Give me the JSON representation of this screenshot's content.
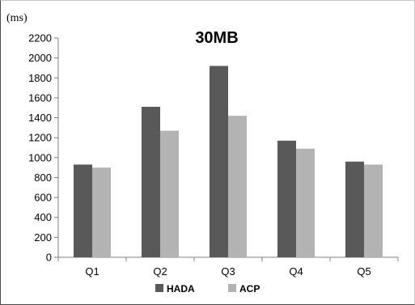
{
  "chart_data": {
    "type": "bar",
    "title": "30MB",
    "unit_label": "(ms)",
    "categories": [
      "Q1",
      "Q2",
      "Q3",
      "Q4",
      "Q5"
    ],
    "series": [
      {
        "name": "HADA",
        "values": [
          930,
          1510,
          1920,
          1170,
          960
        ],
        "color": "#595959"
      },
      {
        "name": "ACP",
        "values": [
          900,
          1270,
          1420,
          1090,
          930
        ],
        "color": "#b3b3b3"
      }
    ],
    "ylim": [
      0,
      2200
    ],
    "ytick_step": 200,
    "legend_position": "bottom",
    "grid": false
  }
}
